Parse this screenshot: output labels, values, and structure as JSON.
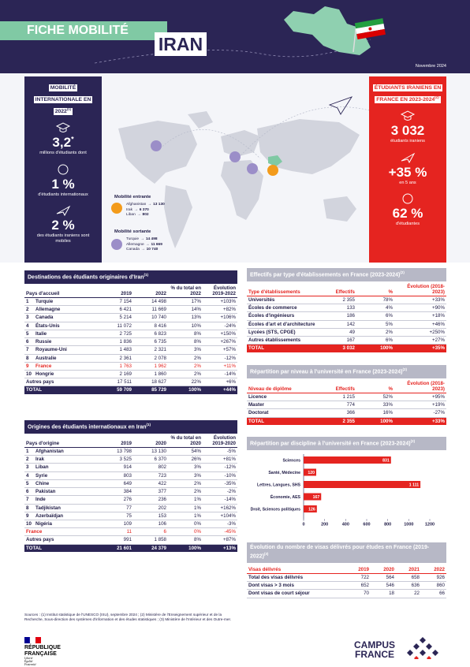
{
  "header": {
    "title": "FICHE MOBILITÉ",
    "country": "IRAN",
    "date": "Novembre 2024"
  },
  "world": {
    "title": "MOBILITÉ INTERNATIONALE EN 2022",
    "ref": "(1)",
    "stats": [
      {
        "value": "3,2",
        "note": "*",
        "label": "millions d'étudiants dont"
      },
      {
        "value": "1 %",
        "label": "d'étudiants internationaux"
      },
      {
        "value": "2 %",
        "label": "des étudiants iraniens sont mobiles"
      }
    ]
  },
  "france": {
    "title": "ÉTUDIANTS IRANIENS EN FRANCE EN 2023-2024",
    "ref": "(2)",
    "stats": [
      {
        "value": "3 032",
        "label": "étudiants iraniens"
      },
      {
        "value": "+35 %",
        "label": "en 5 ans"
      },
      {
        "value": "62 %",
        "label": "d'étudiantes"
      }
    ]
  },
  "map": {
    "sep": "→",
    "incoming": {
      "title": "Mobilité entrante",
      "items": [
        {
          "country": "Afghanistan",
          "value": "13 130"
        },
        {
          "country": "Irak",
          "value": "6 370"
        },
        {
          "country": "Liban",
          "value": "802"
        }
      ]
    },
    "outgoing": {
      "title": "Mobilité sortante",
      "items": [
        {
          "country": "Turquie",
          "value": "14 498"
        },
        {
          "country": "Allemagne",
          "value": "11 669"
        },
        {
          "country": "Canada",
          "value": "10 740"
        }
      ]
    }
  },
  "destinations": {
    "title": "Destinations des étudiants originaires d'Iran",
    "ref": "(1)",
    "headers": [
      "Pays d'accueil",
      "2019",
      "2022",
      "% du total en 2022",
      "Évolution 2019-2022"
    ],
    "highlight_row": 8,
    "rows": [
      [
        "1",
        "Turquie",
        "7 154",
        "14 498",
        "17%",
        "+103%"
      ],
      [
        "2",
        "Allemagne",
        "6 421",
        "11 669",
        "14%",
        "+82%"
      ],
      [
        "3",
        "Canada",
        "5 214",
        "10 740",
        "13%",
        "+106%"
      ],
      [
        "4",
        "États-Unis",
        "11 072",
        "8 416",
        "10%",
        "-24%"
      ],
      [
        "5",
        "Italie",
        "2 725",
        "6 823",
        "8%",
        "+150%"
      ],
      [
        "6",
        "Russie",
        "1 836",
        "6 735",
        "8%",
        "+267%"
      ],
      [
        "7",
        "Royaume-Uni",
        "1 483",
        "2 321",
        "3%",
        "+57%"
      ],
      [
        "8",
        "Australie",
        "2 361",
        "2 078",
        "2%",
        "-12%"
      ],
      [
        "9",
        "France",
        "1 763",
        "1 962",
        "2%",
        "+11%"
      ],
      [
        "10",
        "Hongrie",
        "2 169",
        "1 860",
        "2%",
        "-14%"
      ],
      [
        "Autres pays",
        "17 511",
        "18 627",
        "22%",
        "+6%"
      ],
      [
        "TOTAL",
        "59 709",
        "85 729",
        "100%",
        "+44%"
      ]
    ]
  },
  "origins": {
    "title": "Origines des étudiants internationaux en Iran",
    "ref": "(1)",
    "headers": [
      "Pays d'origine",
      "2019",
      "2020",
      "% du total en 2020",
      "Évolution 2019-2020"
    ],
    "highlight_row": 10,
    "rows": [
      [
        "1",
        "Afghanistan",
        "13 798",
        "13 130",
        "54%",
        "-5%"
      ],
      [
        "2",
        "Irak",
        "3 525",
        "6 370",
        "26%",
        "+81%"
      ],
      [
        "3",
        "Liban",
        "914",
        "802",
        "3%",
        "-12%"
      ],
      [
        "4",
        "Syrie",
        "803",
        "723",
        "3%",
        "-10%"
      ],
      [
        "5",
        "Chine",
        "649",
        "422",
        "2%",
        "-35%"
      ],
      [
        "6",
        "Pakistan",
        "384",
        "377",
        "2%",
        "-2%"
      ],
      [
        "7",
        "Inde",
        "276",
        "236",
        "1%",
        "-14%"
      ],
      [
        "8",
        "Tadjikistan",
        "77",
        "202",
        "1%",
        "+162%"
      ],
      [
        "9",
        "Azerbaïdjan",
        "75",
        "153",
        "1%",
        "+104%"
      ],
      [
        "10",
        "Nigéria",
        "109",
        "106",
        "0%",
        "-3%"
      ],
      [
        "France",
        "11",
        "6",
        "0%",
        "-45%"
      ],
      [
        "Autres pays",
        "991",
        "1 858",
        "8%",
        "+87%"
      ],
      [
        "TOTAL",
        "21 601",
        "24 379",
        "100%",
        "+13%"
      ]
    ]
  },
  "establishments": {
    "title": "Effectifs par type d'établissements en France (2023-2024)",
    "ref": "(2)",
    "headers": [
      "Type d'établissements",
      "Effectifs",
      "%",
      "Évolution (2018-2023)"
    ],
    "rows": [
      [
        "Universités",
        "2 355",
        "78%",
        "+33%"
      ],
      [
        "Écoles de commerce",
        "133",
        "4%",
        "+90%"
      ],
      [
        "Écoles d'ingénieurs",
        "186",
        "6%",
        "+18%"
      ],
      [
        "Écoles d'art et d'architecture",
        "142",
        "5%",
        "+46%"
      ],
      [
        "Lycées (STS, CPGE)",
        "49",
        "2%",
        "+250%"
      ],
      [
        "Autres établissements",
        "167",
        "6%",
        "+27%"
      ],
      [
        "TOTAL",
        "3 032",
        "100%",
        "+35%"
      ]
    ]
  },
  "levels": {
    "title": "Répartition par niveau à l'université en France (2023-2024)",
    "ref": "(2)",
    "headers": [
      "Niveau de diplôme",
      "Effectifs",
      "%",
      "Évolution (2018-2023)"
    ],
    "rows": [
      [
        "Licence",
        "1 215",
        "52%",
        "+95%"
      ],
      [
        "Master",
        "774",
        "33%",
        "+19%"
      ],
      [
        "Doctorat",
        "366",
        "16%",
        "-27%"
      ],
      [
        "TOTAL",
        "2 355",
        "100%",
        "+33%"
      ]
    ]
  },
  "chart_data": {
    "type": "bar",
    "orientation": "horizontal",
    "title": "Répartition par discipline à l'université en France (2023-2024)",
    "ref": "(2)",
    "categories": [
      "Sciences",
      "Santé, Médecine",
      "Lettres, Langues, SHS",
      "Économie, AES",
      "Droit, Sciences politiques"
    ],
    "values": [
      831,
      120,
      1111,
      167,
      126
    ],
    "value_labels": [
      "831",
      "120",
      "1 111",
      "167",
      "126"
    ],
    "color": "#e52420",
    "xlim": [
      0,
      1200
    ],
    "xticks": [
      0,
      200,
      400,
      600,
      800,
      1000,
      1200
    ]
  },
  "visas": {
    "title": "Évolution du nombre de visas délivrés pour études en France (2019-2022)",
    "ref": "(3)",
    "headers": [
      "Visas délivrés",
      "2019",
      "2020",
      "2021",
      "2022"
    ],
    "rows": [
      [
        "Total des visas délivrés",
        "722",
        "564",
        "658",
        "926"
      ],
      [
        "Dont visas > 3 mois",
        "652",
        "546",
        "636",
        "860"
      ],
      [
        "Dont visas de court séjour",
        "70",
        "18",
        "22",
        "66"
      ]
    ]
  },
  "sources": "Sources : (1) Institut statistique de l'UNESCO (ISU), septembre 2024 ; (2) Ministère de l'Enseignement supérieur et de la Recherche, Sous-direction des systèmes d'information et des études statistiques ; (3) Ministère de l'Intérieur et des Outre-mer.",
  "footer": {
    "republic": "RÉPUBLIQUE FRANÇAISE",
    "motto": [
      "Liberté",
      "Égalité",
      "Fraternité"
    ],
    "brand": [
      "CAMPUS",
      "FRANCE"
    ]
  }
}
